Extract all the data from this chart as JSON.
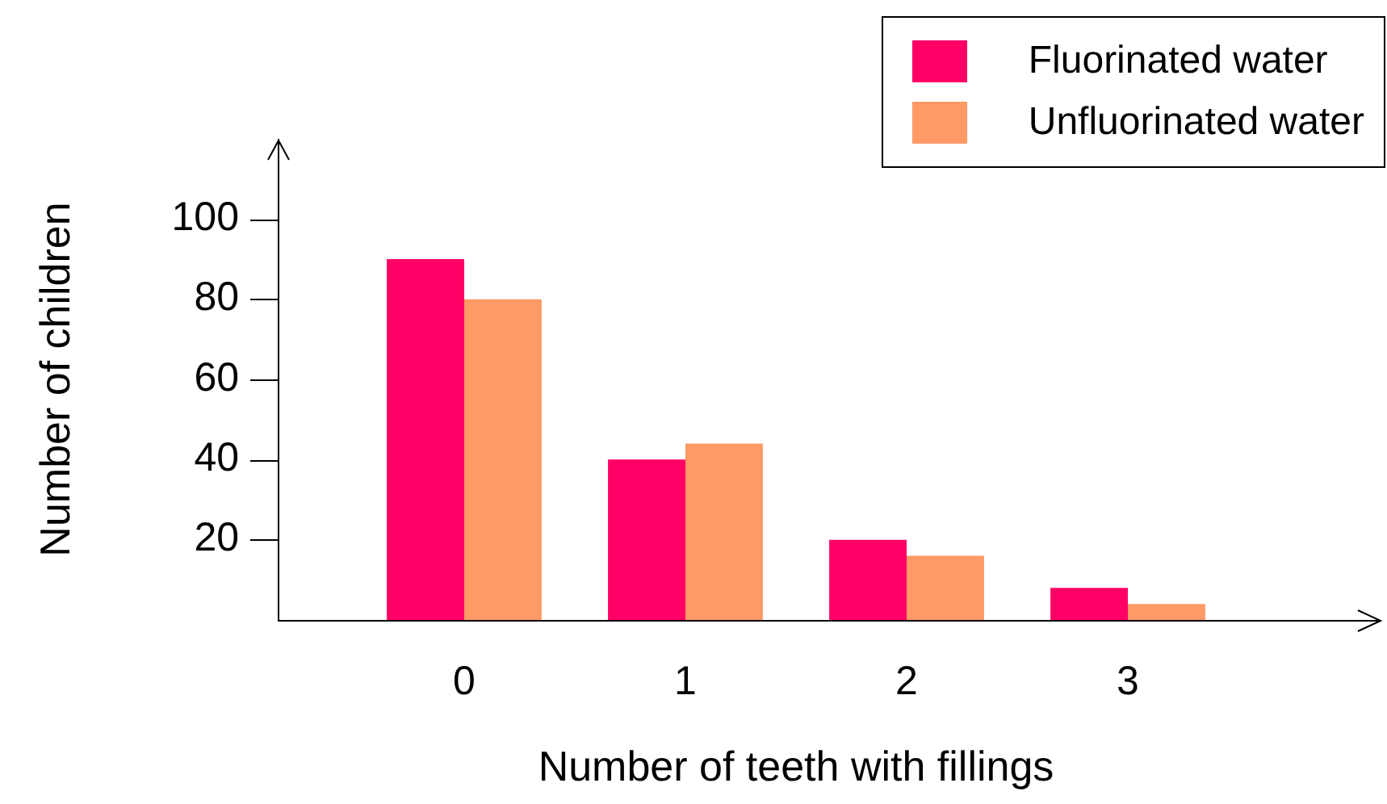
{
  "chart_data": {
    "type": "bar",
    "xlabel": "Number of teeth with fillings",
    "ylabel": "Number of children",
    "categories": [
      "0",
      "1",
      "2",
      "3"
    ],
    "series": [
      {
        "name": "Fluorinated water",
        "color": "#ff0066",
        "values": [
          90,
          40,
          20,
          8
        ]
      },
      {
        "name": "Unfluorinated water",
        "color": "#ff9966",
        "values": [
          80,
          44,
          16,
          4
        ]
      }
    ],
    "ylim": [
      0,
      120
    ],
    "yticks": [
      20,
      40,
      60,
      80,
      100
    ],
    "grid": false,
    "legend": "top right"
  }
}
